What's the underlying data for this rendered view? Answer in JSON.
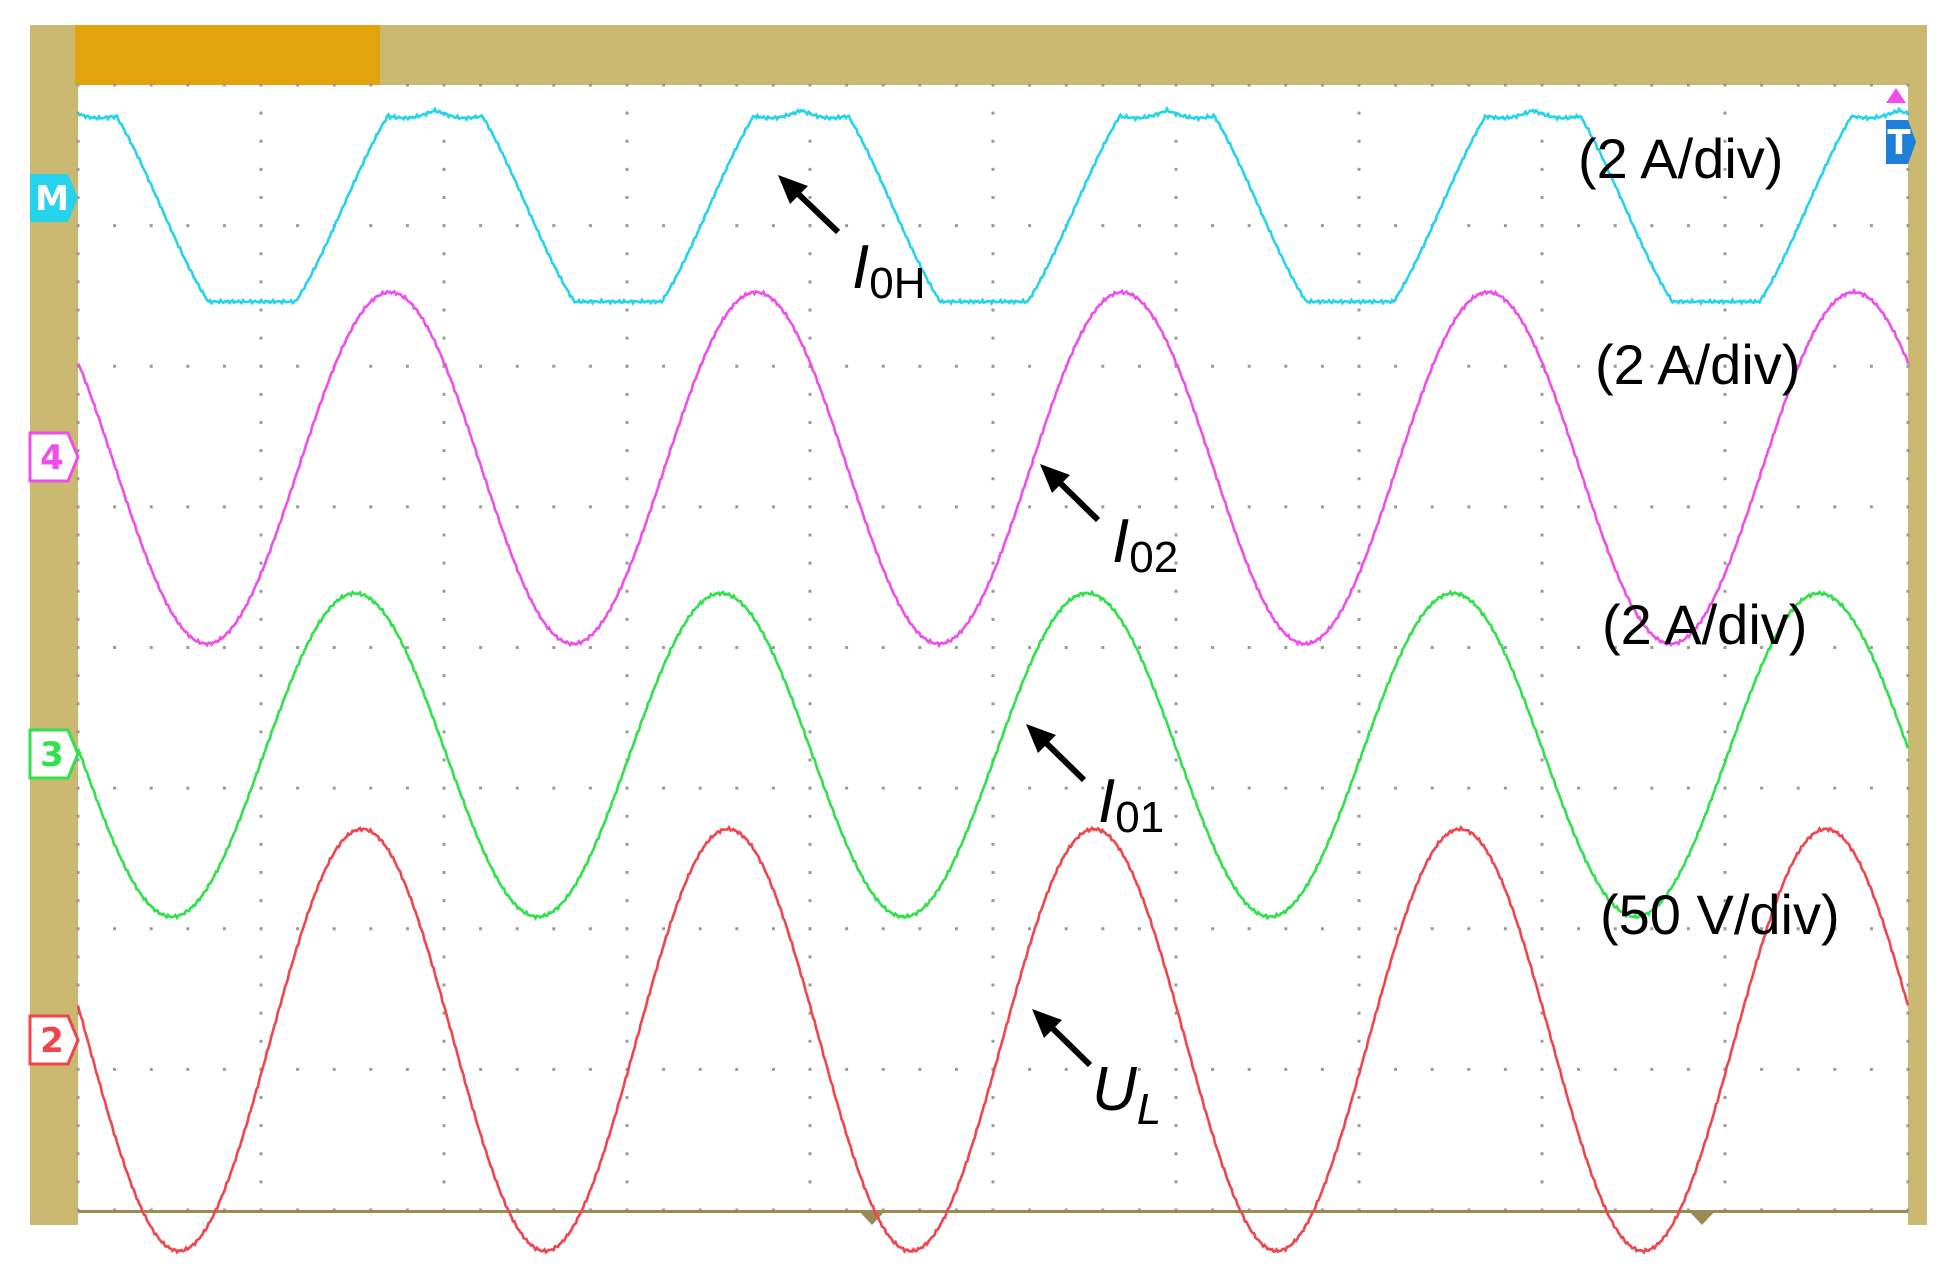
{
  "colors": {
    "frame": "#cbb871",
    "title_bar": "#e3a30a",
    "grid_dot": "#9a9a9a",
    "screen": "#ffffff",
    "trace_M": "#25d3ec",
    "trace_4": "#ee4fea",
    "trace_3": "#2fe14a",
    "trace_2": "#f0454d",
    "trigger_marker": "#1e7fd8",
    "trigger_top": "#ee4fea"
  },
  "channel_markers": [
    {
      "id": "M",
      "label": "M",
      "color": "#25d3ec"
    },
    {
      "id": "4",
      "label": "4",
      "color": "#ee4fea"
    },
    {
      "id": "3",
      "label": "3",
      "color": "#2fe14a"
    },
    {
      "id": "2",
      "label": "2",
      "color": "#f0454d"
    }
  ],
  "trigger": {
    "label": "T"
  },
  "annotations": {
    "trace_M": {
      "main": "I",
      "sub": "0H",
      "scale": "(2 A/div)"
    },
    "trace_4": {
      "main": "I",
      "sub": "02",
      "scale": "(2 A/div)"
    },
    "trace_3": {
      "main": "I",
      "sub": "01",
      "scale": "(2 A/div)"
    },
    "trace_2": {
      "main": "U",
      "sub": "L",
      "scale": "(50 V/div)"
    }
  },
  "chart_data": {
    "type": "line",
    "grid": true,
    "grid_divisions": {
      "x": 10,
      "y": 8
    },
    "series": [
      {
        "name": "I0H",
        "scale": "2 A/div",
        "color": "#25d3ec",
        "shape": "flattened-sine",
        "amplitude_div": 0.68,
        "period_div": 2.0,
        "phase_div": 0.0
      },
      {
        "name": "I02",
        "scale": "2 A/div",
        "color": "#ee4fea",
        "shape": "sine",
        "amplitude_div": 1.25,
        "period_div": 2.0,
        "phase_div": 0.0
      },
      {
        "name": "I01",
        "scale": "2 A/div",
        "color": "#2fe14a",
        "shape": "sine",
        "amplitude_div": 1.15,
        "period_div": 2.0,
        "phase_div": 0.0
      },
      {
        "name": "UL",
        "scale": "50 V/div",
        "color": "#f0454d",
        "shape": "sine",
        "amplitude_div": 1.5,
        "period_div": 2.0,
        "phase_div": 0.0
      }
    ]
  }
}
